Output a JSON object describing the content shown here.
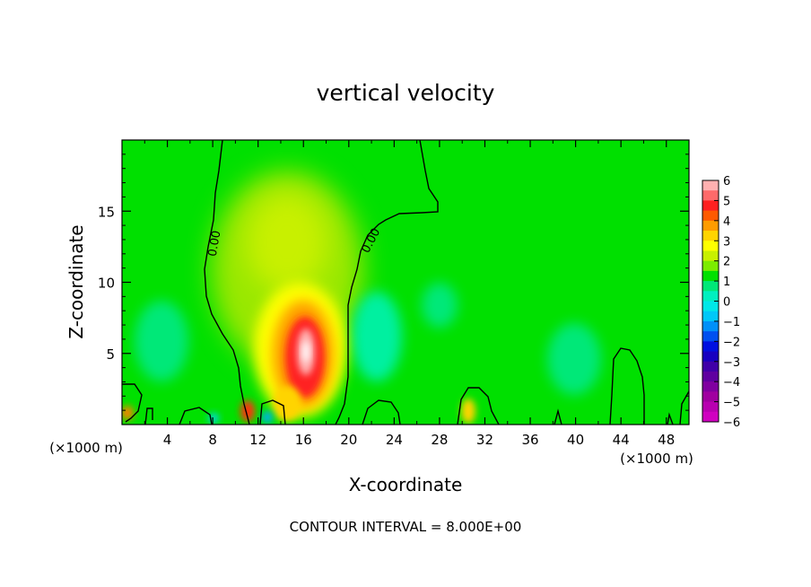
{
  "chart_data": {
    "type": "heatmap",
    "title": "vertical velocity",
    "xlabel": "X-coordinate",
    "ylabel": "Z-coordinate",
    "x_unit_label": "(×1000 m)",
    "y_unit_label": "(×1000 m)",
    "footer": "CONTOUR INTERVAL = 8.000E+00",
    "xlim": [
      0,
      50
    ],
    "ylim": [
      0,
      20
    ],
    "x_ticks": [
      4,
      8,
      12,
      16,
      20,
      24,
      28,
      32,
      36,
      40,
      44,
      48
    ],
    "x_tick_labels": [
      "4",
      "8",
      "12",
      "16",
      "20",
      "24",
      "28",
      "32",
      "36",
      "40",
      "44",
      "48"
    ],
    "y_ticks": [
      5,
      10,
      15
    ],
    "y_tick_labels": [
      "5",
      "10",
      "15"
    ],
    "colorbar": {
      "min": -6,
      "max": 6,
      "tick_labels": [
        "6",
        "5",
        "4",
        "3",
        "2",
        "1",
        "0",
        "−1",
        "−2",
        "−3",
        "−4",
        "−5",
        "−6"
      ],
      "colors": [
        "#ffb0b0",
        "#ff6a6a",
        "#ff2020",
        "#ff5a00",
        "#ff9c00",
        "#ffd400",
        "#ffff00",
        "#c8f000",
        "#7cec00",
        "#00e000",
        "#00e878",
        "#00f0c0",
        "#00e8e8",
        "#00c8f8",
        "#0090f8",
        "#0050f0",
        "#0010e0",
        "#1800c0",
        "#4000a8",
        "#6000a0",
        "#8000a0",
        "#a000a0",
        "#b800b0",
        "#d000c0"
      ]
    },
    "contour_labels": [
      "0.00",
      "0.00"
    ],
    "features": [
      {
        "name": "updraft-core",
        "x": 16.3,
        "z": 5.0,
        "w": 6.0
      },
      {
        "name": "updraft-envelope",
        "x": 15.5,
        "z": 9.0,
        "w": 1.3
      },
      {
        "name": "low-updraft",
        "x": 11.0,
        "z": 1.0,
        "w": 4.0
      },
      {
        "name": "low-updraft",
        "x": 0.5,
        "z": 0.7,
        "w": 3.0
      },
      {
        "name": "low-updraft",
        "x": 30.5,
        "z": 1.5,
        "w": 2.0
      },
      {
        "name": "downdraft",
        "x": 22.0,
        "z": 6.0,
        "w": -1.5
      },
      {
        "name": "downdraft",
        "x": 4.0,
        "z": 6.0,
        "w": -1.0
      },
      {
        "name": "downdraft",
        "x": 40.0,
        "z": 5.0,
        "w": -1.0
      },
      {
        "name": "downdraft",
        "x": 13.0,
        "z": 0.5,
        "w": -2.5
      }
    ],
    "grid": false
  }
}
